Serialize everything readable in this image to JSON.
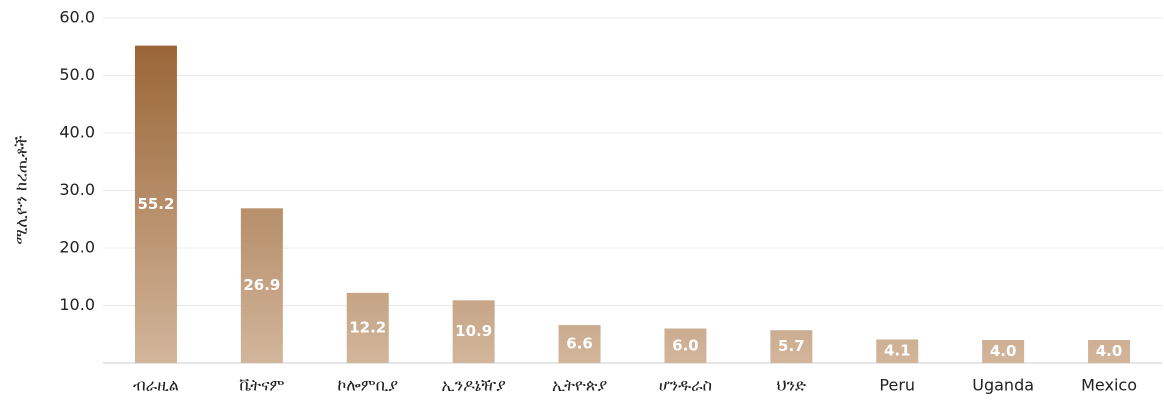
{
  "chart_data": {
    "type": "bar",
    "y_label": "ሚሊዮን ከረጢቶች",
    "categories": [
      "ብራዚል",
      "ቬትናም",
      "ኮሎምቢያ",
      "ኢንዶኔዥያ",
      "ኢትዮጵያ",
      "ሆንዱራስ",
      "ህንድ",
      "Peru",
      "Uganda",
      "Mexico"
    ],
    "values": [
      55.2,
      26.9,
      12.2,
      10.9,
      6.6,
      6.0,
      5.7,
      4.1,
      4.0,
      4.0
    ],
    "value_labels": [
      "55.2",
      "26.9",
      "12.2",
      "10.9",
      "6.6",
      "6.0",
      "5.7",
      "4.1",
      "4.0",
      "4.0"
    ],
    "colors": [
      "#955f2d",
      "#d2b59b"
    ],
    "ylim": [
      0,
      60
    ],
    "yticks": [
      {
        "value": 10,
        "label": "10.0"
      },
      {
        "value": 20,
        "label": "20.0"
      },
      {
        "value": 30,
        "label": "30.0"
      },
      {
        "value": 40,
        "label": "40.0"
      },
      {
        "value": 50,
        "label": "50.0"
      },
      {
        "value": 60,
        "label": "60.0"
      }
    ],
    "grid": true
  }
}
